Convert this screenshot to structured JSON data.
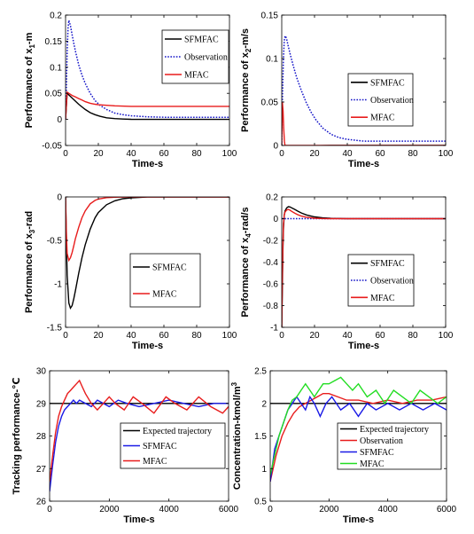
{
  "colors": {
    "black": "#000000",
    "blue": "#1a1ae6",
    "red": "#e81c1c",
    "green": "#22dd22",
    "dotted_blue": "#1414c8"
  },
  "chart_data": [
    {
      "type": "line",
      "title": "",
      "xlabel": "Time-s",
      "ylabel": "Performance of x",
      "ylabel_sub": "1",
      "ylabel_suffix": "-m",
      "xlim": [
        0,
        100
      ],
      "ylim": [
        -0.05,
        0.2
      ],
      "xticks": [
        0,
        20,
        40,
        60,
        80,
        100
      ],
      "xtick_labels": [
        "0",
        "20",
        "40",
        "60",
        "80",
        "100"
      ],
      "yticks": [
        -0.05,
        0,
        0.05,
        0.1,
        0.15,
        0.2
      ],
      "ytick_labels": [
        "-0.05",
        "0",
        "0.05",
        "0.1",
        "0.15",
        "0.2"
      ],
      "grid": false,
      "legend_placement": "top-right",
      "series": [
        {
          "name": "SFMFAC",
          "color": "black",
          "style": "solid",
          "x": [
            0,
            1,
            2,
            4,
            6,
            8,
            10,
            12,
            15,
            18,
            21,
            25,
            30,
            35,
            40,
            50,
            60,
            80,
            100
          ],
          "y": [
            0,
            0.05,
            0.047,
            0.041,
            0.035,
            0.029,
            0.024,
            0.019,
            0.013,
            0.009,
            0.006,
            0.003,
            0.0015,
            0.0006,
            0.0002,
            0,
            0,
            0,
            0
          ]
        },
        {
          "name": "Observation",
          "color": "dotted_blue",
          "style": "dotted",
          "x": [
            0,
            0.5,
            1,
            1.5,
            2,
            2.5,
            3,
            4,
            5,
            6,
            8,
            10,
            12,
            15,
            18,
            21,
            25,
            30,
            35,
            40,
            50,
            60,
            80,
            100
          ],
          "y": [
            0,
            0.06,
            0.13,
            0.175,
            0.19,
            0.185,
            0.18,
            0.162,
            0.146,
            0.131,
            0.105,
            0.085,
            0.069,
            0.05,
            0.036,
            0.027,
            0.019,
            0.012,
            0.009,
            0.007,
            0.005,
            0.004,
            0.004,
            0.004
          ]
        },
        {
          "name": "MFAC",
          "color": "red",
          "style": "solid",
          "x": [
            0,
            1,
            2,
            4,
            6,
            8,
            10,
            12,
            15,
            18,
            20,
            25,
            30,
            40,
            60,
            80,
            100
          ],
          "y": [
            0,
            0.052,
            0.05,
            0.046,
            0.043,
            0.04,
            0.037,
            0.034,
            0.031,
            0.029,
            0.028,
            0.027,
            0.026,
            0.025,
            0.025,
            0.025,
            0.025
          ]
        }
      ]
    },
    {
      "type": "line",
      "title": "",
      "xlabel": "Time-s",
      "ylabel": "Performance of x",
      "ylabel_sub": "2",
      "ylabel_suffix": "-m/s",
      "xlim": [
        0,
        100
      ],
      "ylim": [
        0,
        0.15
      ],
      "xticks": [
        0,
        20,
        40,
        60,
        80,
        100
      ],
      "xtick_labels": [
        "0",
        "20",
        "40",
        "60",
        "80",
        "100"
      ],
      "yticks": [
        0,
        0.05,
        0.1,
        0.15
      ],
      "ytick_labels": [
        "0",
        "0.05",
        "0.1",
        "0.15"
      ],
      "grid": false,
      "legend_placement": "center-right",
      "series": [
        {
          "name": "SFMFAC",
          "color": "black",
          "style": "solid",
          "x": [
            0,
            0.3,
            1,
            3,
            6,
            10,
            15,
            20,
            30,
            40,
            50,
            60,
            80,
            100
          ],
          "y": [
            0,
            -0.003,
            -0.003,
            -0.0025,
            -0.002,
            -0.0012,
            -0.0006,
            -0.0003,
            0,
            0,
            0,
            0,
            0,
            0
          ]
        },
        {
          "name": "Observation",
          "color": "dotted_blue",
          "style": "dotted",
          "x": [
            0,
            0.5,
            1,
            1.5,
            2,
            2.5,
            3,
            4,
            5,
            7,
            9,
            12,
            15,
            18,
            21,
            25,
            30,
            35,
            40,
            45,
            50,
            60,
            80,
            100
          ],
          "y": [
            0,
            0.06,
            0.1,
            0.12,
            0.126,
            0.125,
            0.122,
            0.114,
            0.106,
            0.092,
            0.079,
            0.063,
            0.049,
            0.038,
            0.029,
            0.02,
            0.013,
            0.009,
            0.007,
            0.006,
            0.005,
            0.005,
            0.005,
            0.005
          ]
        },
        {
          "name": "MFAC",
          "color": "red",
          "style": "solid",
          "x": [
            0,
            0.4,
            0.8,
            1.2,
            1.6,
            2,
            3,
            5,
            10,
            20,
            50,
            100
          ],
          "y": [
            0,
            0.05,
            0.04,
            0.02,
            0.005,
            0,
            0,
            0,
            0,
            0,
            0,
            0
          ]
        }
      ]
    },
    {
      "type": "line",
      "title": "",
      "xlabel": "Time-s",
      "ylabel": "Performance of x",
      "ylabel_sub": "3",
      "ylabel_suffix": "-rad",
      "xlim": [
        0,
        100
      ],
      "ylim": [
        -1.5,
        0
      ],
      "xticks": [
        0,
        20,
        40,
        60,
        80,
        100
      ],
      "xtick_labels": [
        "0",
        "20",
        "40",
        "60",
        "80",
        "100"
      ],
      "yticks": [
        -1.5,
        -1,
        -0.5,
        0
      ],
      "ytick_labels": [
        "-1.5",
        "-1",
        "-0.5",
        "0"
      ],
      "grid": false,
      "legend_placement": "center-left",
      "series": [
        {
          "name": "SFMFAC",
          "color": "black",
          "style": "solid",
          "x": [
            0,
            0.5,
            1,
            2,
            3,
            4,
            5,
            6,
            8,
            10,
            12,
            15,
            18,
            20,
            25,
            30,
            35,
            40,
            45,
            50,
            60,
            80,
            100
          ],
          "y": [
            0,
            -0.5,
            -0.9,
            -1.22,
            -1.28,
            -1.25,
            -1.17,
            -1.08,
            -0.88,
            -0.7,
            -0.55,
            -0.37,
            -0.24,
            -0.18,
            -0.09,
            -0.045,
            -0.02,
            -0.01,
            -0.005,
            0,
            0,
            0,
            0
          ]
        },
        {
          "name": "MFAC",
          "color": "red",
          "style": "solid",
          "x": [
            0,
            0.5,
            1,
            2,
            3,
            4,
            5,
            6,
            8,
            10,
            12,
            15,
            18,
            20,
            25,
            30,
            40,
            60,
            100
          ],
          "y": [
            0,
            -0.4,
            -0.65,
            -0.73,
            -0.7,
            -0.64,
            -0.56,
            -0.48,
            -0.35,
            -0.24,
            -0.16,
            -0.08,
            -0.04,
            -0.025,
            -0.008,
            -0.003,
            0,
            0,
            0
          ]
        }
      ]
    },
    {
      "type": "line",
      "title": "",
      "xlabel": "Time-s",
      "ylabel": "Performance of x",
      "ylabel_sub": "4",
      "ylabel_suffix": "-rad/s",
      "xlim": [
        0,
        100
      ],
      "ylim": [
        -1,
        0.2
      ],
      "xticks": [
        0,
        20,
        40,
        60,
        80,
        100
      ],
      "xtick_labels": [
        "0",
        "20",
        "40",
        "60",
        "80",
        "100"
      ],
      "yticks": [
        -1,
        -0.8,
        -0.6,
        -0.4,
        -0.2,
        0,
        0.2
      ],
      "ytick_labels": [
        "-1",
        "-0.8",
        "-0.6",
        "-0.4",
        "-0.2",
        "0",
        "0.2"
      ],
      "grid": false,
      "legend_placement": "bottom-right",
      "series": [
        {
          "name": "SFMFAC",
          "color": "black",
          "style": "solid",
          "x": [
            0,
            0.3,
            0.7,
            1,
            1.5,
            2,
            3,
            4,
            5,
            6,
            8,
            10,
            12,
            15,
            20,
            25,
            30,
            40,
            60,
            100
          ],
          "y": [
            -1,
            -0.7,
            -0.3,
            -0.1,
            0.03,
            0.07,
            0.1,
            0.11,
            0.108,
            0.1,
            0.085,
            0.068,
            0.052,
            0.034,
            0.016,
            0.007,
            0.003,
            0,
            0,
            0
          ]
        },
        {
          "name": "Observation",
          "color": "dotted_blue",
          "style": "dotted",
          "x": [
            0,
            2,
            10,
            30,
            60,
            100
          ],
          "y": [
            0,
            0,
            0,
            0,
            0,
            0
          ]
        },
        {
          "name": "MFAC",
          "color": "red",
          "style": "solid",
          "x": [
            0,
            0.3,
            0.7,
            1,
            1.5,
            2,
            3,
            4,
            5,
            6,
            8,
            10,
            12,
            15,
            20,
            25,
            30,
            40,
            60,
            100
          ],
          "y": [
            -1,
            -0.6,
            -0.25,
            -0.05,
            0.03,
            0.06,
            0.08,
            0.085,
            0.078,
            0.068,
            0.05,
            0.035,
            0.024,
            0.013,
            0.004,
            0.001,
            0,
            0,
            0,
            0
          ]
        }
      ]
    },
    {
      "type": "line",
      "title": "",
      "xlabel": "Time-s",
      "ylabel": "Tracking performance-℃",
      "xlim": [
        0,
        6000
      ],
      "ylim": [
        26,
        30
      ],
      "xticks": [
        0,
        2000,
        4000,
        6000
      ],
      "xtick_labels": [
        "0",
        "2000",
        "4000",
        "6000"
      ],
      "yticks": [
        26,
        27,
        28,
        29,
        30
      ],
      "ytick_labels": [
        "26",
        "27",
        "28",
        "29",
        "30"
      ],
      "grid": false,
      "legend_placement": "bottom-right",
      "series": [
        {
          "name": "Expected trajectory",
          "color": "black",
          "style": "solid",
          "x": [
            0,
            6000
          ],
          "y": [
            29,
            29
          ]
        },
        {
          "name": "SFMFAC",
          "color": "blue",
          "style": "solid",
          "x": [
            0,
            100,
            200,
            300,
            400,
            500,
            600,
            700,
            800,
            900,
            1000,
            1200,
            1400,
            1600,
            1800,
            2000,
            2300,
            2600,
            3000,
            3500,
            4000,
            4500,
            5000,
            5500,
            6000
          ],
          "y": [
            26.3,
            27.1,
            27.8,
            28.3,
            28.6,
            28.8,
            28.9,
            29.0,
            29.1,
            29.0,
            29.1,
            29.0,
            28.9,
            29.1,
            29.0,
            28.9,
            29.1,
            29.0,
            28.9,
            29.0,
            29.1,
            29.0,
            28.9,
            29.0,
            29.0
          ]
        },
        {
          "name": "MFAC",
          "color": "red",
          "style": "solid",
          "x": [
            0,
            100,
            200,
            300,
            400,
            500,
            600,
            700,
            800,
            900,
            1000,
            1100,
            1200,
            1400,
            1600,
            1800,
            2000,
            2200,
            2500,
            2800,
            3100,
            3500,
            3900,
            4200,
            4600,
            5000,
            5400,
            5800,
            6000
          ],
          "y": [
            26.6,
            27.4,
            28.1,
            28.6,
            28.9,
            29.1,
            29.3,
            29.4,
            29.5,
            29.6,
            29.7,
            29.5,
            29.3,
            29.0,
            28.8,
            29.0,
            29.2,
            29.0,
            28.8,
            29.2,
            29.0,
            28.7,
            29.2,
            29.0,
            28.8,
            29.2,
            28.9,
            28.7,
            28.9
          ]
        }
      ]
    },
    {
      "type": "line",
      "title": "",
      "xlabel": "Time-s",
      "ylabel": "Concentration-kmol/m",
      "ylabel_sup": "3",
      "xlim": [
        0,
        6000
      ],
      "ylim": [
        0.5,
        2.5
      ],
      "xticks": [
        0,
        2000,
        4000,
        6000
      ],
      "xtick_labels": [
        "0",
        "2000",
        "4000",
        "6000"
      ],
      "yticks": [
        0.5,
        1,
        1.5,
        2,
        2.5
      ],
      "ytick_labels": [
        "0.5",
        "1",
        "1.5",
        "2",
        "2.5"
      ],
      "grid": false,
      "legend_placement": "bottom-right",
      "series": [
        {
          "name": "Expected trajectory",
          "color": "black",
          "style": "solid",
          "x": [
            0,
            6000
          ],
          "y": [
            2,
            2
          ]
        },
        {
          "name": "Observation",
          "color": "red",
          "style": "solid",
          "x": [
            0,
            200,
            400,
            600,
            800,
            1000,
            1200,
            1400,
            1600,
            1800,
            2000,
            2300,
            2600,
            3000,
            3500,
            4000,
            4500,
            5000,
            5500,
            6000
          ],
          "y": [
            0.8,
            1.2,
            1.5,
            1.7,
            1.85,
            1.95,
            2.0,
            2.05,
            2.1,
            2.15,
            2.15,
            2.1,
            2.05,
            2.05,
            2.0,
            2.05,
            2.0,
            2.05,
            2.05,
            2.1
          ]
        },
        {
          "name": "SFMFAC",
          "color": "blue",
          "style": "solid",
          "x": [
            0,
            150,
            300,
            450,
            600,
            750,
            900,
            1050,
            1200,
            1350,
            1500,
            1700,
            1900,
            2100,
            2400,
            2700,
            3000,
            3300,
            3600,
            4000,
            4400,
            4800,
            5200,
            5600,
            6000
          ],
          "y": [
            0.8,
            1.3,
            1.5,
            1.7,
            1.9,
            2.0,
            2.1,
            2.0,
            1.9,
            2.1,
            2.0,
            1.8,
            2.0,
            2.1,
            1.9,
            2.0,
            1.8,
            2.0,
            1.9,
            2.0,
            1.9,
            2.0,
            1.9,
            2.0,
            1.9
          ]
        },
        {
          "name": "MFAC",
          "color": "green",
          "style": "solid",
          "x": [
            0,
            150,
            300,
            450,
            600,
            750,
            900,
            1050,
            1200,
            1350,
            1500,
            1650,
            1800,
            2000,
            2200,
            2400,
            2600,
            2800,
            3000,
            3300,
            3600,
            3900,
            4200,
            4500,
            4800,
            5100,
            5400,
            5700,
            6000
          ],
          "y": [
            0.9,
            1.2,
            1.5,
            1.7,
            1.9,
            2.05,
            2.1,
            2.2,
            2.3,
            2.2,
            2.1,
            2.2,
            2.3,
            2.3,
            2.35,
            2.4,
            2.3,
            2.2,
            2.3,
            2.1,
            2.2,
            2.0,
            2.2,
            2.1,
            2.0,
            2.2,
            2.1,
            2.0,
            2.1
          ]
        }
      ]
    }
  ]
}
